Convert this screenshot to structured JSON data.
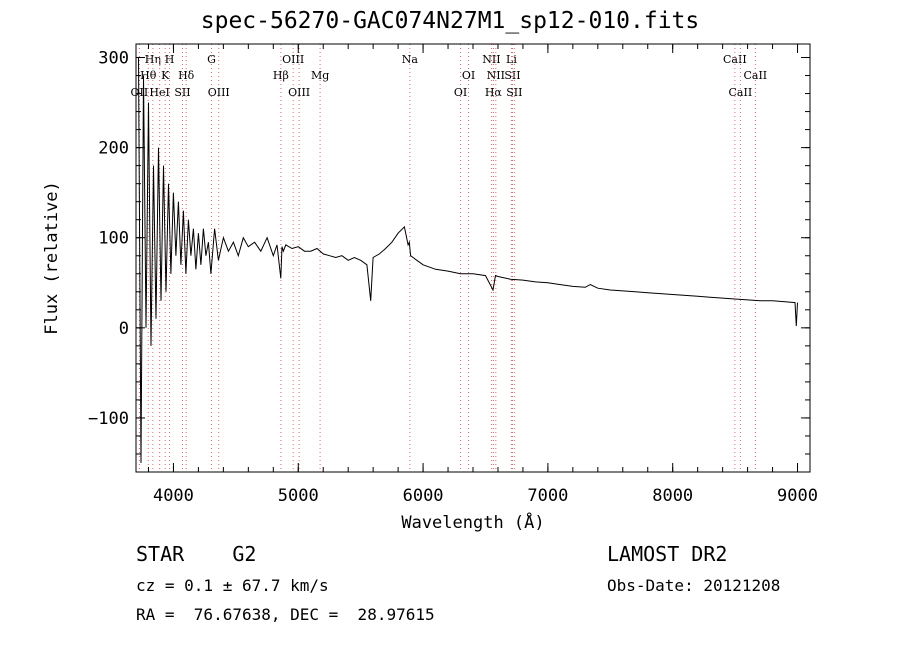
{
  "chart_data": {
    "type": "line",
    "title": "spec-56270-GAC074N27M1_sp12-010.fits",
    "xlabel": "Wavelength (Å)",
    "ylabel": "Flux (relative)",
    "xlim": [
      3700,
      9100
    ],
    "ylim": [
      -160,
      315
    ],
    "xticks": [
      4000,
      5000,
      6000,
      7000,
      8000,
      9000
    ],
    "yticks": [
      -100,
      0,
      100,
      200,
      300
    ],
    "ytick_labels": [
      "−100",
      "0",
      "100",
      "200",
      "300"
    ],
    "grid": false,
    "line_color": "#000000",
    "marker_color": "#e06666",
    "series": [
      {
        "x": [
          3720,
          3740,
          3760,
          3780,
          3800,
          3820,
          3840,
          3860,
          3880,
          3900,
          3920,
          3940,
          3960,
          3980,
          4000,
          4020,
          4040,
          4060,
          4080,
          4100,
          4120,
          4140,
          4160,
          4180,
          4200,
          4220,
          4240,
          4260,
          4280,
          4300,
          4330,
          4360,
          4400,
          4440,
          4480,
          4520,
          4560,
          4600,
          4650,
          4700,
          4750,
          4800,
          4830,
          4860,
          4870,
          4880,
          4900,
          4950,
          5000,
          5050,
          5100,
          5150,
          5200,
          5250,
          5300,
          5350,
          5400,
          5450,
          5500,
          5550,
          5580,
          5600,
          5650,
          5700,
          5750,
          5800,
          5850,
          5880,
          5890,
          5900,
          5920,
          5950,
          6000,
          6100,
          6200,
          6300,
          6400,
          6500,
          6560,
          6580,
          6600,
          6700,
          6800,
          6900,
          7000,
          7100,
          7200,
          7300,
          7340,
          7400,
          7500,
          7600,
          7700,
          7800,
          7900,
          8000,
          8100,
          8200,
          8300,
          8400,
          8500,
          8600,
          8700,
          8800,
          8900,
          8980,
          8990,
          9000
        ],
        "y": [
          300,
          -150,
          280,
          0,
          250,
          -20,
          180,
          10,
          200,
          30,
          180,
          40,
          160,
          60,
          150,
          80,
          140,
          70,
          130,
          60,
          120,
          80,
          110,
          65,
          105,
          70,
          110,
          80,
          95,
          60,
          110,
          75,
          100,
          85,
          95,
          80,
          100,
          90,
          95,
          85,
          100,
          80,
          92,
          55,
          90,
          85,
          92,
          88,
          90,
          85,
          85,
          88,
          82,
          80,
          78,
          80,
          75,
          78,
          75,
          70,
          30,
          78,
          82,
          88,
          95,
          105,
          112,
          92,
          95,
          80,
          78,
          75,
          70,
          65,
          63,
          60,
          60,
          58,
          42,
          58,
          57,
          54,
          53,
          51,
          50,
          48,
          46,
          45,
          48,
          44,
          42,
          41,
          40,
          39,
          38,
          37,
          36,
          35,
          34,
          33,
          32,
          31,
          30,
          30,
          29,
          28,
          2,
          28
        ]
      }
    ],
    "line_markers": [
      {
        "label": "OII",
        "x": 3727,
        "row": 3
      },
      {
        "label": "Hη",
        "x": 3835,
        "row": 1
      },
      {
        "label": "Hθ",
        "x": 3798,
        "row": 2
      },
      {
        "label": "K",
        "x": 3934,
        "row": 2
      },
      {
        "label": "H",
        "x": 3969,
        "row": 1
      },
      {
        "label": "HeI",
        "x": 3889,
        "row": 3
      },
      {
        "label": "SII",
        "x": 4072,
        "row": 3
      },
      {
        "label": "Hδ",
        "x": 4102,
        "row": 2
      },
      {
        "label": "G",
        "x": 4305,
        "row": 1
      },
      {
        "label": "OIII",
        "x": 4363,
        "row": 3
      },
      {
        "label": "Hβ",
        "x": 4861,
        "row": 2
      },
      {
        "label": "OIII",
        "x": 4959,
        "row": 1
      },
      {
        "label": "OIII",
        "x": 5007,
        "row": 3
      },
      {
        "label": "Mg",
        "x": 5175,
        "row": 2
      },
      {
        "label": "Na",
        "x": 5894,
        "row": 1
      },
      {
        "label": "OI",
        "x": 6300,
        "row": 3
      },
      {
        "label": "OI",
        "x": 6364,
        "row": 2
      },
      {
        "label": "NII",
        "x": 6548,
        "row": 1
      },
      {
        "label": "Hα",
        "x": 6563,
        "row": 3
      },
      {
        "label": "NII",
        "x": 6583,
        "row": 2
      },
      {
        "label": "Li",
        "x": 6708,
        "row": 1
      },
      {
        "label": "SII",
        "x": 6716,
        "row": 2
      },
      {
        "label": "SII",
        "x": 6731,
        "row": 3
      },
      {
        "label": "CaII",
        "x": 8498,
        "row": 1
      },
      {
        "label": "CaII",
        "x": 8542,
        "row": 3
      },
      {
        "label": "CaII",
        "x": 8662,
        "row": 2
      }
    ]
  },
  "info": {
    "object_class": "STAR    G2",
    "survey": "LAMOST DR2",
    "cz": "cz = 0.1 ± 67.7 km/s",
    "obs_date": "Obs-Date: 20121208",
    "radec": "RA =  76.67638, DEC =  28.97615"
  }
}
